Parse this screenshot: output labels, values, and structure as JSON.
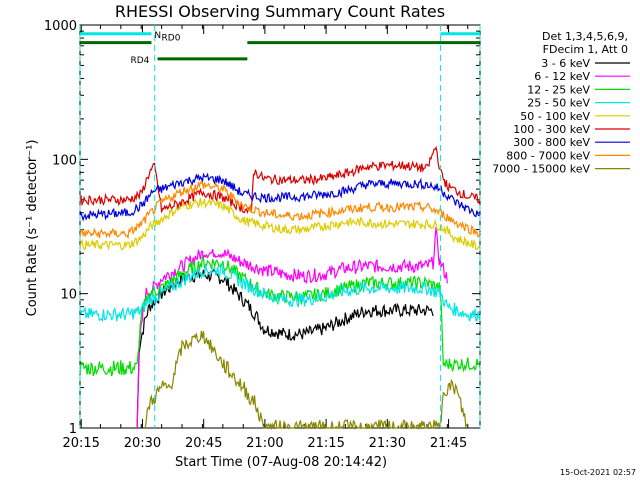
{
  "chart_data": {
    "type": "line",
    "title": "RHESSI Observing Summary Count Rates",
    "xlabel": "Start Time (07-Aug-08 20:14:42)",
    "ylabel": "Count Rate (s⁻¹ detector⁻¹)",
    "yscale": "log",
    "ylim": [
      1,
      1000
    ],
    "xlim_minutes": [
      0,
      98
    ],
    "x_tick_labels": [
      "20:15",
      "20:30",
      "20:45",
      "21:00",
      "21:15",
      "21:30",
      "21:45"
    ],
    "x_tick_minutes": [
      0.3,
      15.3,
      30.3,
      45.3,
      60.3,
      75.3,
      90.3
    ],
    "y_tick_labels": [
      "1",
      "10",
      "100",
      "1000"
    ],
    "y_tick_values": [
      1,
      10,
      100,
      1000
    ],
    "legend_header": [
      "Det 1,3,4,5,6,9,",
      "FDecim 1, Att 0"
    ],
    "footer": "15-Oct-2021 02:57",
    "annotations": {
      "N": "N",
      "RD0": "RD0",
      "RD4": "RD4"
    },
    "intervals": [
      {
        "label": "N",
        "color": "#00e5e5",
        "level": 860,
        "segments": [
          [
            0,
            17.5
          ],
          [
            88.3,
            98
          ]
        ]
      },
      {
        "label": "RD0",
        "color": "#006600",
        "level": 740,
        "segments": [
          [
            0,
            17.5
          ],
          [
            41,
            98
          ]
        ]
      },
      {
        "label": "RD4",
        "color": "#006600",
        "level": 560,
        "segments": [
          [
            19,
            41
          ]
        ]
      }
    ],
    "night_markers_minutes": [
      0,
      18.3,
      88.3,
      98
    ],
    "series": [
      {
        "name": "3 - 6 keV",
        "color": "#000000",
        "points": [
          [
            14,
            1
          ],
          [
            14.5,
            4
          ],
          [
            16,
            6.5
          ],
          [
            17,
            8
          ],
          [
            20,
            10
          ],
          [
            25,
            13
          ],
          [
            30,
            14
          ],
          [
            35,
            13
          ],
          [
            40,
            9
          ],
          [
            43,
            7
          ],
          [
            45,
            5.5
          ],
          [
            50,
            5
          ],
          [
            55,
            5
          ],
          [
            60,
            5.5
          ],
          [
            65,
            6.5
          ],
          [
            70,
            7.5
          ],
          [
            75,
            7.5
          ],
          [
            80,
            7.5
          ],
          [
            85,
            7.5
          ],
          [
            86.5,
            7.5
          ]
        ]
      },
      {
        "name": "6 - 12 keV",
        "color": "#ff00ff",
        "points": [
          [
            14,
            1
          ],
          [
            14.5,
            4
          ],
          [
            16,
            10
          ],
          [
            18,
            11
          ],
          [
            20,
            13
          ],
          [
            25,
            16
          ],
          [
            30,
            20
          ],
          [
            35,
            20
          ],
          [
            40,
            17
          ],
          [
            45,
            15
          ],
          [
            50,
            14
          ],
          [
            55,
            13.5
          ],
          [
            60,
            14
          ],
          [
            65,
            15.5
          ],
          [
            70,
            16
          ],
          [
            75,
            16
          ],
          [
            80,
            16
          ],
          [
            85,
            16
          ],
          [
            86.5,
            17
          ],
          [
            87.2,
            30
          ],
          [
            88,
            18
          ],
          [
            89.5,
            14
          ],
          [
            90,
            13
          ]
        ]
      },
      {
        "name": "12 - 25 keV",
        "color": "#00dd00",
        "points": [
          [
            0,
            2.8
          ],
          [
            14,
            2.8
          ],
          [
            15,
            7
          ],
          [
            17,
            10
          ],
          [
            20,
            11
          ],
          [
            25,
            14
          ],
          [
            30,
            17
          ],
          [
            35,
            17
          ],
          [
            40,
            13
          ],
          [
            45,
            10
          ],
          [
            50,
            9.5
          ],
          [
            55,
            9.5
          ],
          [
            60,
            10
          ],
          [
            65,
            11
          ],
          [
            70,
            12
          ],
          [
            75,
            12
          ],
          [
            80,
            12
          ],
          [
            85,
            12
          ],
          [
            88.3,
            11
          ],
          [
            89,
            3
          ],
          [
            98,
            3
          ]
        ]
      },
      {
        "name": "25 - 50 keV",
        "color": "#00e5e5",
        "points": [
          [
            0,
            7
          ],
          [
            12,
            7
          ],
          [
            15,
            7.5
          ],
          [
            17,
            9
          ],
          [
            20,
            10
          ],
          [
            25,
            12.5
          ],
          [
            30,
            15
          ],
          [
            35,
            15
          ],
          [
            40,
            12
          ],
          [
            45,
            10
          ],
          [
            50,
            9
          ],
          [
            55,
            9
          ],
          [
            60,
            9.5
          ],
          [
            65,
            10.5
          ],
          [
            70,
            11
          ],
          [
            75,
            11
          ],
          [
            80,
            11
          ],
          [
            85,
            11
          ],
          [
            88.3,
            10
          ],
          [
            90,
            8
          ],
          [
            95,
            7
          ],
          [
            98,
            7
          ]
        ]
      },
      {
        "name": "50 - 100 keV",
        "color": "#ddcc00",
        "points": [
          [
            0,
            23
          ],
          [
            12,
            23
          ],
          [
            15,
            26
          ],
          [
            17,
            31
          ],
          [
            20,
            36
          ],
          [
            25,
            45
          ],
          [
            30,
            48
          ],
          [
            35,
            45
          ],
          [
            40,
            35
          ],
          [
            45,
            32
          ],
          [
            50,
            30
          ],
          [
            55,
            30
          ],
          [
            60,
            32
          ],
          [
            65,
            34
          ],
          [
            70,
            34
          ],
          [
            75,
            33
          ],
          [
            80,
            33
          ],
          [
            85,
            33
          ],
          [
            88.3,
            32
          ],
          [
            92,
            26
          ],
          [
            98,
            22
          ]
        ]
      },
      {
        "name": "100 - 300 keV",
        "color": "#dd0000",
        "points": [
          [
            0,
            50
          ],
          [
            12,
            50
          ],
          [
            15,
            55
          ],
          [
            17,
            80
          ],
          [
            18.3,
            88
          ],
          [
            20,
            42
          ],
          [
            25,
            48
          ],
          [
            30,
            57
          ],
          [
            35,
            52
          ],
          [
            40,
            43
          ],
          [
            42,
            40
          ],
          [
            42.5,
            82
          ],
          [
            45,
            72
          ],
          [
            50,
            70
          ],
          [
            55,
            70
          ],
          [
            60,
            72
          ],
          [
            65,
            78
          ],
          [
            70,
            88
          ],
          [
            75,
            90
          ],
          [
            80,
            90
          ],
          [
            85,
            85
          ],
          [
            87.2,
            125
          ],
          [
            88.3,
            80
          ],
          [
            90,
            63
          ],
          [
            95,
            53
          ],
          [
            98,
            50
          ]
        ]
      },
      {
        "name": "300 - 800 keV",
        "color": "#0000dd",
        "points": [
          [
            0,
            38
          ],
          [
            12,
            40
          ],
          [
            15,
            45
          ],
          [
            18,
            58
          ],
          [
            20,
            60
          ],
          [
            25,
            68
          ],
          [
            30,
            73
          ],
          [
            35,
            70
          ],
          [
            40,
            55
          ],
          [
            45,
            52
          ],
          [
            50,
            52
          ],
          [
            55,
            53
          ],
          [
            60,
            55
          ],
          [
            65,
            58
          ],
          [
            70,
            65
          ],
          [
            75,
            66
          ],
          [
            80,
            66
          ],
          [
            85,
            65
          ],
          [
            88.3,
            60
          ],
          [
            92,
            48
          ],
          [
            98,
            38
          ]
        ]
      },
      {
        "name": "800 - 7000 keV",
        "color": "#ff8800",
        "points": [
          [
            0,
            28
          ],
          [
            12,
            28
          ],
          [
            15,
            33
          ],
          [
            18,
            42
          ],
          [
            20,
            48
          ],
          [
            25,
            58
          ],
          [
            30,
            65
          ],
          [
            35,
            60
          ],
          [
            40,
            45
          ],
          [
            45,
            40
          ],
          [
            50,
            38
          ],
          [
            55,
            38
          ],
          [
            60,
            40
          ],
          [
            65,
            42
          ],
          [
            70,
            44
          ],
          [
            75,
            44
          ],
          [
            80,
            44
          ],
          [
            85,
            44
          ],
          [
            88.3,
            40
          ],
          [
            92,
            34
          ],
          [
            98,
            28
          ]
        ]
      },
      {
        "name": "7000 - 15000 keV",
        "color": "#888800",
        "points": [
          [
            16,
            1
          ],
          [
            17,
            1.5
          ],
          [
            20,
            2
          ],
          [
            22,
            2
          ],
          [
            25,
            4
          ],
          [
            30,
            5
          ],
          [
            35,
            3
          ],
          [
            40,
            2
          ],
          [
            43,
            1.5
          ],
          [
            45,
            1
          ],
          [
            88.3,
            1
          ],
          [
            89,
            2
          ],
          [
            92,
            2
          ],
          [
            95,
            1
          ]
        ]
      }
    ]
  }
}
